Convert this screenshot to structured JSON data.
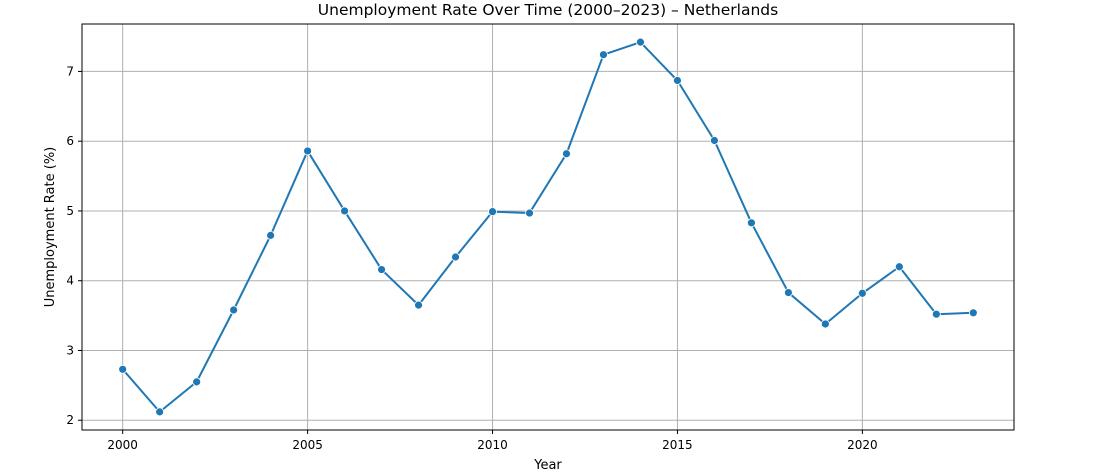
{
  "chart_data": {
    "type": "line",
    "title": "Unemployment Rate Over Time (2000–2023) – Netherlands",
    "xlabel": "Year",
    "ylabel": "Unemployment Rate (%)",
    "x": [
      2000,
      2001,
      2002,
      2003,
      2004,
      2005,
      2006,
      2007,
      2008,
      2009,
      2010,
      2011,
      2012,
      2013,
      2014,
      2015,
      2016,
      2017,
      2018,
      2019,
      2020,
      2021,
      2022,
      2023
    ],
    "series": [
      {
        "values": [
          2.73,
          2.12,
          2.55,
          3.58,
          4.65,
          5.86,
          5.0,
          4.16,
          3.65,
          4.34,
          4.99,
          4.97,
          5.82,
          7.24,
          7.42,
          6.87,
          6.01,
          4.83,
          3.83,
          3.38,
          3.82,
          4.2,
          3.52,
          3.54
        ],
        "color": "#1f77b4"
      }
    ],
    "xlim": [
      1998.9,
      2024.1
    ],
    "ylim": [
      1.86,
      7.68
    ],
    "xticks": [
      2000,
      2005,
      2010,
      2015,
      2020
    ],
    "yticks": [
      2,
      3,
      4,
      5,
      6,
      7
    ],
    "grid": true,
    "marker": "circle"
  }
}
